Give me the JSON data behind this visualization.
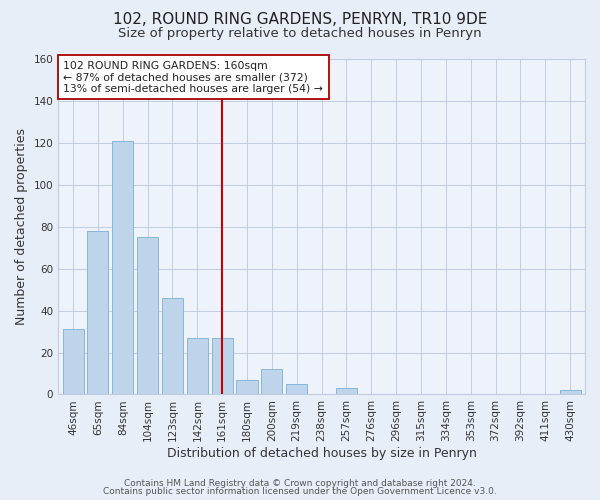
{
  "title": "102, ROUND RING GARDENS, PENRYN, TR10 9DE",
  "subtitle": "Size of property relative to detached houses in Penryn",
  "xlabel": "Distribution of detached houses by size in Penryn",
  "ylabel": "Number of detached properties",
  "bar_labels": [
    "46sqm",
    "65sqm",
    "84sqm",
    "104sqm",
    "123sqm",
    "142sqm",
    "161sqm",
    "180sqm",
    "200sqm",
    "219sqm",
    "238sqm",
    "257sqm",
    "276sqm",
    "296sqm",
    "315sqm",
    "334sqm",
    "353sqm",
    "372sqm",
    "392sqm",
    "411sqm",
    "430sqm"
  ],
  "bar_values": [
    31,
    78,
    121,
    75,
    46,
    27,
    27,
    7,
    12,
    5,
    0,
    3,
    0,
    0,
    0,
    0,
    0,
    0,
    0,
    0,
    2
  ],
  "bar_color": "#bdd4eb",
  "bar_edge_color": "#7aafd4",
  "vline_x": 6,
  "vline_color": "#cc0000",
  "ylim": [
    0,
    160
  ],
  "yticks": [
    0,
    20,
    40,
    60,
    80,
    100,
    120,
    140,
    160
  ],
  "annotation_text": "102 ROUND RING GARDENS: 160sqm\n← 87% of detached houses are smaller (372)\n13% of semi-detached houses are larger (54) →",
  "annotation_box_edgecolor": "#aa0000",
  "footer_line1": "Contains HM Land Registry data © Crown copyright and database right 2024.",
  "footer_line2": "Contains public sector information licensed under the Open Government Licence v3.0.",
  "bg_color": "#e8eef8",
  "plot_bg_color": "#edf2fb",
  "grid_color": "#c0cce0",
  "title_fontsize": 11,
  "subtitle_fontsize": 9.5,
  "axis_label_fontsize": 9,
  "tick_fontsize": 7.5,
  "annotation_fontsize": 7.8,
  "footer_fontsize": 6.5
}
